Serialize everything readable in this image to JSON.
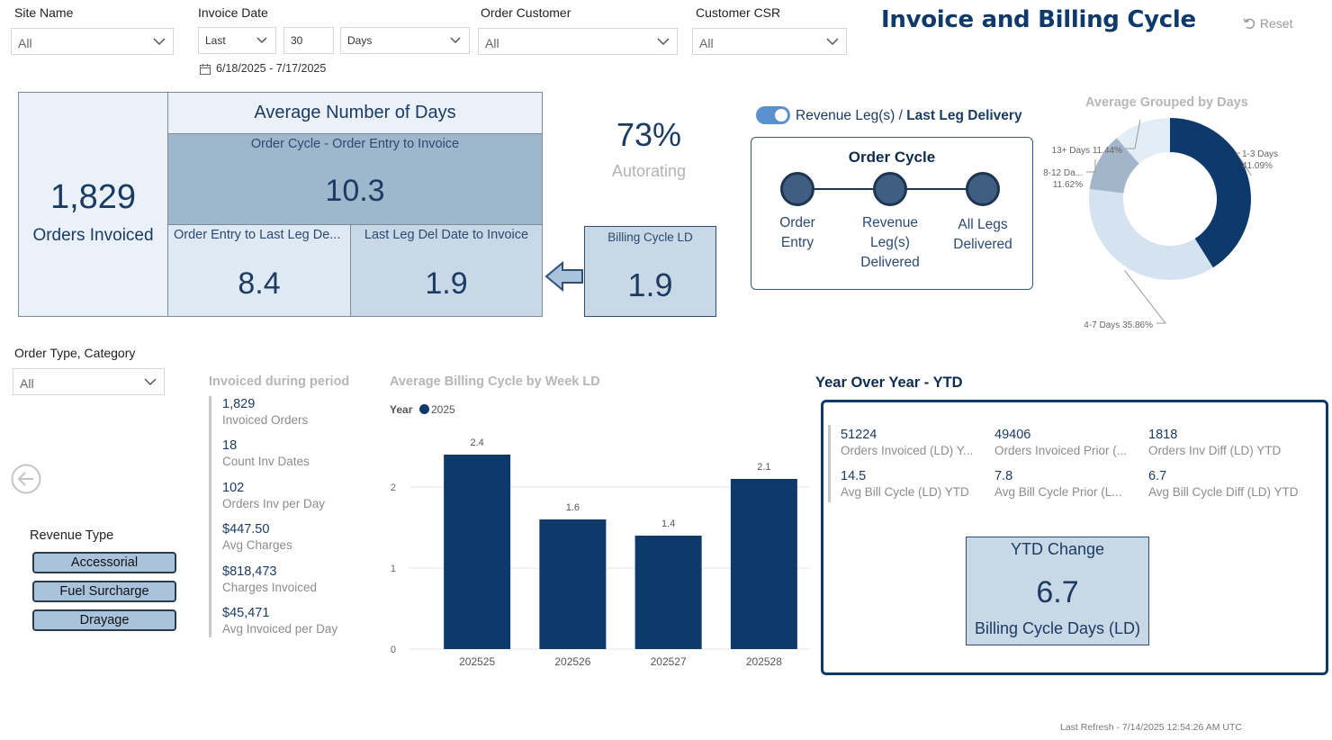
{
  "filters": {
    "site_name": {
      "label": "Site Name",
      "value": "All"
    },
    "invoice_date": {
      "label": "Invoice Date",
      "mode": "Last",
      "count": "30",
      "unit": "Days",
      "range": "6/18/2025 - 7/17/2025"
    },
    "order_customer": {
      "label": "Order Customer",
      "value": "All"
    },
    "customer_csr": {
      "label": "Customer CSR",
      "value": "All"
    },
    "order_type": {
      "label": "Order Type, Category",
      "value": "All"
    }
  },
  "header": {
    "title": "Invoice and Billing Cycle",
    "reset_label": "Reset"
  },
  "kpi": {
    "orders_invoiced_value": "1,829",
    "orders_invoiced_label": "Orders Invoiced",
    "avg_days_title": "Average Number of Days",
    "order_cycle_label": "Order Cycle - Order Entry to Invoice",
    "order_cycle_value": "10.3",
    "entry_to_last_leg_label": "Order Entry to Last Leg De...",
    "entry_to_last_leg_value": "8.4",
    "last_leg_to_invoice_label": "Last Leg Del Date to Invoice",
    "last_leg_to_invoice_value": "1.9",
    "billing_cycle_label": "Billing Cycle LD",
    "billing_cycle_value": "1.9",
    "autorating_value": "73%",
    "autorating_label": "Autorating"
  },
  "toggle": {
    "label_left": "Revenue Leg(s) /",
    "label_right": "Last Leg Delivery",
    "on": true
  },
  "order_cycle_card": {
    "title": "Order Cycle",
    "steps": [
      "Order Entry",
      "Revenue Leg(s) Delivered",
      "All Legs Delivered"
    ]
  },
  "donut": {
    "title": "Average Grouped by Days",
    "segments": [
      {
        "name": "1-3 Days",
        "pct_label": "41.09%",
        "value": 41.09,
        "color": "#0e3a6b"
      },
      {
        "name": "4-7 Days",
        "pct_label": "35.86%",
        "value": 35.86,
        "color": "#d5e2ef"
      },
      {
        "name": "8-12 Da...",
        "pct_label": "11.62%",
        "value": 11.62,
        "color": "#a3b5c9"
      },
      {
        "name": "13+ Days",
        "pct_label": "11.44%",
        "value": 11.44,
        "color": "#e3edf6"
      }
    ]
  },
  "invoiced_period": {
    "title": "Invoiced during period",
    "stats": [
      {
        "value": "1,829",
        "label": "Invoiced Orders"
      },
      {
        "value": "18",
        "label": "Count Inv Dates"
      },
      {
        "value": "102",
        "label": "Orders Inv per Day"
      },
      {
        "value": "$447.50",
        "label": "Avg Charges"
      },
      {
        "value": "$818,473",
        "label": "Charges Invoiced"
      },
      {
        "value": "$45,471",
        "label": "Avg Invoiced per Day"
      }
    ]
  },
  "revenue_type": {
    "label": "Revenue Type",
    "buttons": [
      "Accessorial",
      "Fuel Surcharge",
      "Drayage"
    ]
  },
  "chart_data": {
    "type": "bar",
    "title": "Average Billing Cycle by Week LD",
    "legend_title": "Year",
    "categories": [
      "202525",
      "202526",
      "202527",
      "202528"
    ],
    "series": [
      {
        "name": "2025",
        "values": [
          2.4,
          1.6,
          1.4,
          2.1
        ],
        "color": "#0e3a6b"
      }
    ],
    "ylim": [
      0,
      2.5
    ],
    "yticks": [
      0,
      1,
      2
    ],
    "data_labels": [
      "2.4",
      "1.6",
      "1.4",
      "2.1"
    ]
  },
  "yoy": {
    "title": "Year Over Year - YTD",
    "stats": [
      {
        "value": "51224",
        "label": "Orders Invoiced (LD) Y..."
      },
      {
        "value": "49406",
        "label": "Orders Invoiced Prior (..."
      },
      {
        "value": "1818",
        "label": "Orders Inv Diff (LD) YTD"
      },
      {
        "value": "14.5",
        "label": "Avg Bill Cycle (LD) YTD"
      },
      {
        "value": "7.8",
        "label": "Avg Bill Cycle Prior (L..."
      },
      {
        "value": "6.7",
        "label": "Avg Bill Cycle Diff (LD) YTD"
      }
    ],
    "ytd_title": "YTD Change",
    "ytd_value": "6.7",
    "ytd_label": "Billing Cycle Days (LD)"
  },
  "footer": {
    "last_refresh": "Last Refresh - 7/14/2025 12:54:26 AM UTC"
  }
}
